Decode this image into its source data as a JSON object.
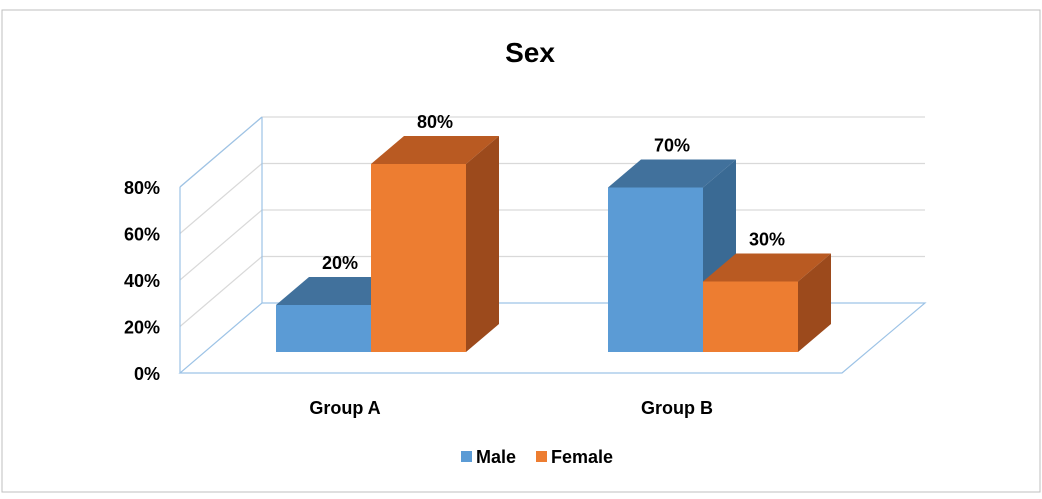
{
  "chart_data": {
    "type": "bar",
    "title": "Sex",
    "categories": [
      "Group A",
      "Group B"
    ],
    "series": [
      {
        "name": "Male",
        "values": [
          20,
          70
        ],
        "labels": [
          "20%",
          "70%"
        ],
        "color": "#5B9BD5",
        "top_color": "#41719C",
        "side_color": "#3A6A94"
      },
      {
        "name": "Female",
        "values": [
          80,
          30
        ],
        "labels": [
          "80%",
          "30%"
        ],
        "color": "#ED7D31",
        "top_color": "#B95A22",
        "side_color": "#9C4A1C"
      }
    ],
    "y_ticks": [
      "0%",
      "20%",
      "40%",
      "60%",
      "80%"
    ],
    "ylim": [
      0,
      80
    ],
    "grid": true,
    "legend_position": "bottom",
    "axis_color": "#9DC3E6",
    "grid_color": "#D9D9D9"
  }
}
